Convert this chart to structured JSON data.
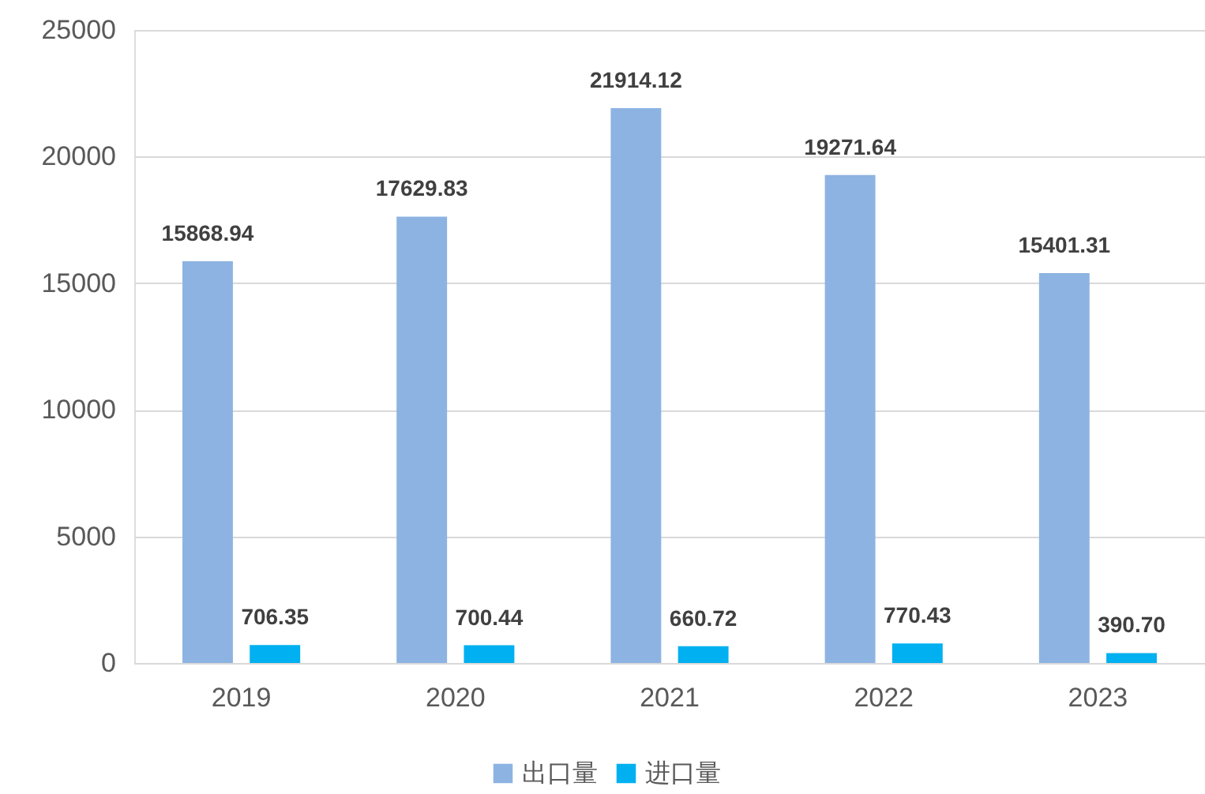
{
  "chart_data": {
    "type": "bar",
    "categories": [
      "2019",
      "2020",
      "2021",
      "2022",
      "2023"
    ],
    "series": [
      {
        "name": "出口量",
        "color": "#8db3e2",
        "values": [
          15868.94,
          17629.83,
          21914.12,
          19271.64,
          15401.31
        ],
        "value_labels": [
          "15868.94",
          "17629.83",
          "21914.12",
          "19271.64",
          "15401.31"
        ]
      },
      {
        "name": "进口量",
        "color": "#00b0f0",
        "values": [
          706.35,
          700.44,
          660.72,
          770.43,
          390.7
        ],
        "value_labels": [
          "706.35",
          "700.44",
          "660.72",
          "770.43",
          "390.70"
        ]
      }
    ],
    "ylim": [
      0,
      25000
    ],
    "yticks": [
      0,
      5000,
      10000,
      15000,
      20000,
      25000
    ],
    "grid": "y",
    "legend": "bottom"
  }
}
